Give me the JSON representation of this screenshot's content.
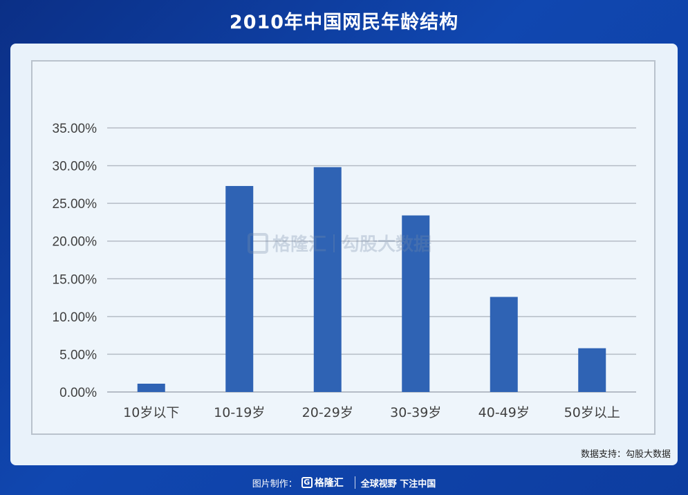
{
  "title": "2010年中国网民年龄结构",
  "source": "数据支持：勾股大数据",
  "footer": {
    "made_by": "图片制作：",
    "brand": "格隆汇",
    "slogan": "全球视野 下注中国"
  },
  "watermark": {
    "left": "格隆汇",
    "right": "勾股大数据"
  },
  "colors": {
    "bar": "#2f63b4",
    "grid": "#b5bcc6",
    "axis_text": "#404040"
  },
  "chart_data": {
    "type": "bar",
    "categories": [
      "10岁以下",
      "10-19岁",
      "20-29岁",
      "30-39岁",
      "40-49岁",
      "50岁以上"
    ],
    "values": [
      1.1,
      27.3,
      29.8,
      23.4,
      12.6,
      5.8
    ],
    "value_unit": "%",
    "ylim": [
      0,
      35
    ],
    "yticks": [
      "0.00%",
      "5.00%",
      "10.00%",
      "15.00%",
      "20.00%",
      "25.00%",
      "30.00%",
      "35.00%"
    ],
    "grid": true,
    "legend": "none"
  }
}
